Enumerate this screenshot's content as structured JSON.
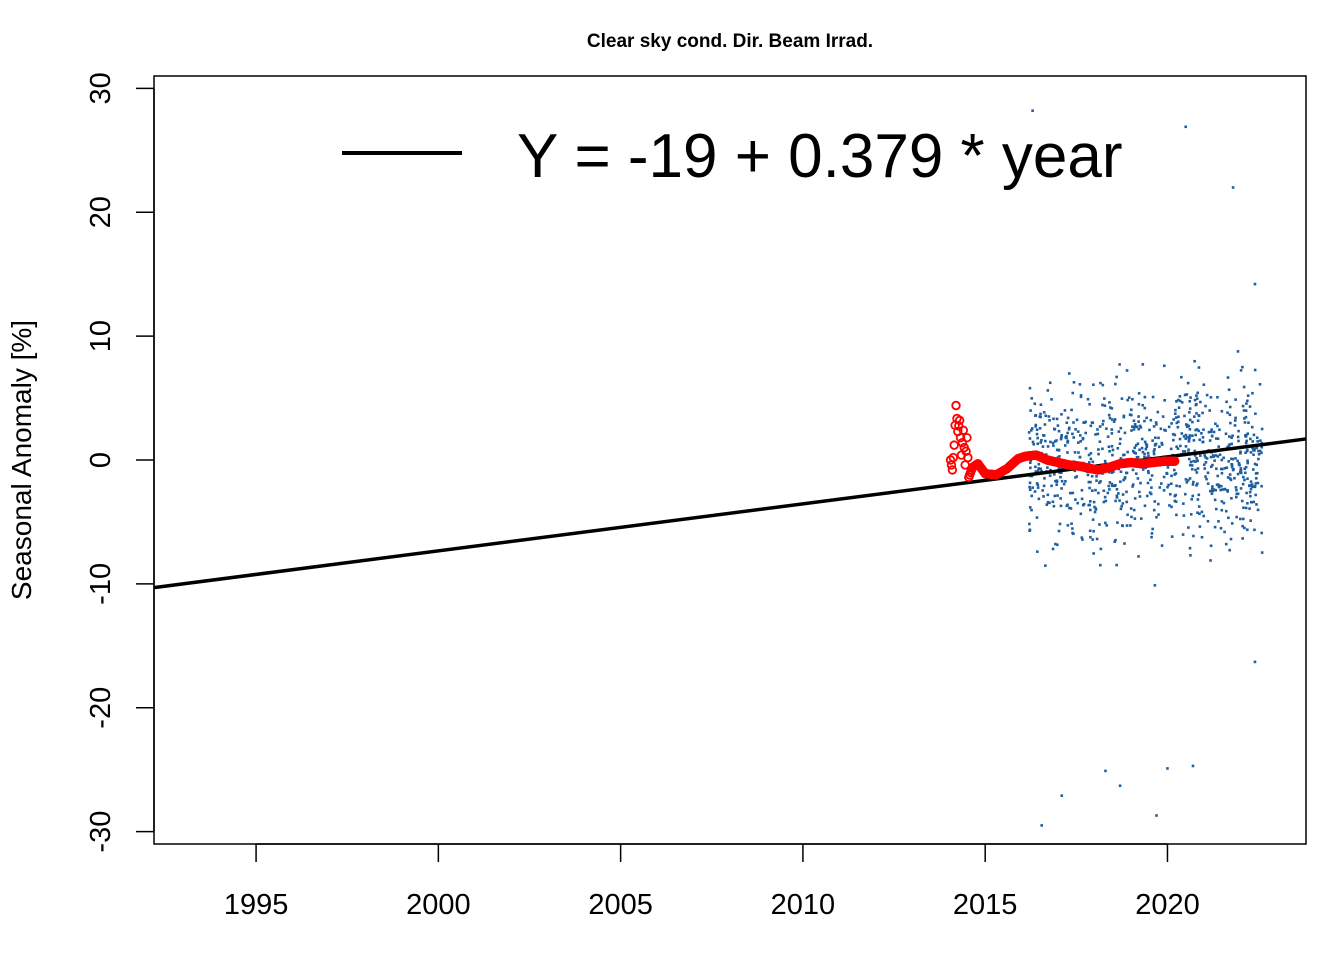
{
  "chart_data": {
    "type": "scatter",
    "title": "Clear sky cond. Dir. Beam Irrad.",
    "xlabel": "",
    "ylabel": "Seasonal Anomaly [%]",
    "xlim": [
      1992.2,
      2023.8
    ],
    "ylim": [
      -31,
      31
    ],
    "x_ticks": [
      1995,
      2000,
      2005,
      2010,
      2015,
      2020
    ],
    "y_ticks": [
      -30,
      -20,
      -10,
      0,
      10,
      20,
      30
    ],
    "grid": false,
    "legend": {
      "position": "top",
      "entries": [
        {
          "label": "Y = -19 + 0.379 * year",
          "style": "line",
          "color": "#000000"
        }
      ]
    },
    "trend_line": {
      "intercept_at_1992.2": -10.3,
      "value_at_2023.8": 1.7,
      "color": "#000000"
    },
    "scatter_cloud": {
      "color": "#1f5fa0",
      "x_range": [
        2016.2,
        2022.6
      ],
      "y_range": [
        -29.5,
        28.2
      ],
      "note_points": [
        {
          "x": 2016.3,
          "y": 28.2
        },
        {
          "x": 2020.5,
          "y": 26.9
        },
        {
          "x": 2016.55,
          "y": -29.5
        },
        {
          "x": 2019.7,
          "y": -28.7
        },
        {
          "x": 2017.1,
          "y": -27.1
        },
        {
          "x": 2018.7,
          "y": -26.3
        },
        {
          "x": 2020.0,
          "y": -24.9
        },
        {
          "x": 2020.7,
          "y": -24.7
        },
        {
          "x": 2018.3,
          "y": -25.1
        },
        {
          "x": 2022.4,
          "y": -16.3
        },
        {
          "x": 2022.4,
          "y": 14.2
        },
        {
          "x": 2021.8,
          "y": 22.0
        }
      ]
    },
    "running_mean": {
      "color": "#ff0000",
      "points": [
        {
          "x": 2014.05,
          "y": 0.0
        },
        {
          "x": 2014.1,
          "y": -0.8
        },
        {
          "x": 2014.15,
          "y": 1.2
        },
        {
          "x": 2014.2,
          "y": 4.4
        },
        {
          "x": 2014.25,
          "y": 2.3
        },
        {
          "x": 2014.3,
          "y": 3.2
        },
        {
          "x": 2014.35,
          "y": 0.4
        },
        {
          "x": 2014.4,
          "y": 2.4
        },
        {
          "x": 2014.45,
          "y": -0.4
        },
        {
          "x": 2014.5,
          "y": 1.8
        },
        {
          "x": 2014.55,
          "y": -1.4
        },
        {
          "x": 2014.65,
          "y": -0.6
        },
        {
          "x": 2014.8,
          "y": -0.3
        },
        {
          "x": 2015.0,
          "y": -1.1
        },
        {
          "x": 2015.3,
          "y": -1.2
        },
        {
          "x": 2015.6,
          "y": -0.7
        },
        {
          "x": 2015.9,
          "y": 0.1
        },
        {
          "x": 2016.1,
          "y": 0.3
        },
        {
          "x": 2016.4,
          "y": 0.4
        },
        {
          "x": 2016.7,
          "y": 0.0
        },
        {
          "x": 2017.0,
          "y": -0.2
        },
        {
          "x": 2017.3,
          "y": -0.4
        },
        {
          "x": 2017.6,
          "y": -0.5
        },
        {
          "x": 2017.9,
          "y": -0.7
        },
        {
          "x": 2018.1,
          "y": -0.8
        },
        {
          "x": 2018.4,
          "y": -0.6
        },
        {
          "x": 2018.7,
          "y": -0.3
        },
        {
          "x": 2019.0,
          "y": -0.2
        },
        {
          "x": 2019.3,
          "y": -0.3
        },
        {
          "x": 2019.6,
          "y": -0.2
        },
        {
          "x": 2019.9,
          "y": -0.1
        },
        {
          "x": 2020.2,
          "y": -0.1
        }
      ]
    }
  }
}
